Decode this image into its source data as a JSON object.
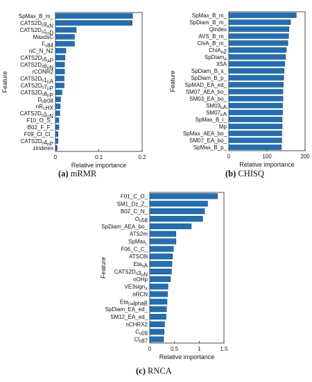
{
  "chart_data": [
    {
      "type": "bar",
      "orientation": "horizontal",
      "caption_letter": "(a)",
      "caption_text": "mRMR",
      "xlabel": "Relative importance",
      "ylabel": "Feature",
      "xlim": [
        0,
        0.2
      ],
      "xticks": [
        "0",
        "0.1",
        "0.2"
      ],
      "xtick_values": [
        0,
        0.1,
        0.2
      ],
      "grid": false,
      "bar_color": "#1f6fb8",
      "categories": [
        "SpMax_B_m_",
        "CATS2D09AN",
        "CATS2D01DD",
        "MaxdsC",
        "F084",
        "nC_N_N2",
        "CATS2D05AP",
        "CATS2D06PN",
        "rCONR2",
        "CATS2D01DA",
        "CATS2D07PP",
        "CATS2D08PP",
        "D0tr08",
        "nRCHX",
        "CATS2D03DN",
        "F10_O_S_",
        "B02_F_F_",
        "F09_Cl_Cl_",
        "CATS2D04PP",
        "ziridines"
      ],
      "category_labels": [
        [
          [
            "SpMax_B_m_",
            ""
          ]
        ],
        [
          [
            "CATS2D",
            ""
          ],
          [
            "0",
            "sub"
          ],
          [
            "9",
            ""
          ],
          [
            "A",
            "sub"
          ],
          [
            "N",
            ""
          ]
        ],
        [
          [
            "CATS2D",
            ""
          ],
          [
            "0",
            "sub"
          ],
          [
            "1",
            ""
          ],
          [
            "D",
            "sub"
          ],
          [
            "D",
            ""
          ]
        ],
        [
          [
            "MaxdsC",
            ""
          ]
        ],
        [
          [
            "F",
            ""
          ],
          [
            "0",
            "sub"
          ],
          [
            "84",
            ""
          ]
        ],
        [
          [
            "nC_N_N2",
            ""
          ]
        ],
        [
          [
            "CATS2D",
            ""
          ],
          [
            "0",
            "sub"
          ],
          [
            "5",
            ""
          ],
          [
            "A",
            "sub"
          ],
          [
            "P",
            ""
          ]
        ],
        [
          [
            "CATS2D",
            ""
          ],
          [
            "0",
            "sub"
          ],
          [
            "6",
            ""
          ],
          [
            "P",
            "sub"
          ],
          [
            "N",
            ""
          ]
        ],
        [
          [
            "rCONR2",
            ""
          ]
        ],
        [
          [
            "CATS2D",
            ""
          ],
          [
            "0",
            "sub"
          ],
          [
            "1",
            ""
          ],
          [
            "D",
            "sub"
          ],
          [
            "A",
            ""
          ]
        ],
        [
          [
            "CATS2D",
            ""
          ],
          [
            "0",
            "sub"
          ],
          [
            "7",
            ""
          ],
          [
            "P",
            "sub"
          ],
          [
            "P",
            ""
          ]
        ],
        [
          [
            "CATS2D",
            ""
          ],
          [
            "0",
            "sub"
          ],
          [
            "8",
            ""
          ],
          [
            "P",
            "sub"
          ],
          [
            "P",
            ""
          ]
        ],
        [
          [
            "D",
            ""
          ],
          [
            "0",
            "sub"
          ],
          [
            "tr08",
            ""
          ]
        ],
        [
          [
            "nR",
            ""
          ],
          [
            "C",
            "sub"
          ],
          [
            "HX",
            ""
          ]
        ],
        [
          [
            "CATS2D",
            ""
          ],
          [
            "0",
            "sub"
          ],
          [
            "3",
            ""
          ],
          [
            "D",
            "sub"
          ],
          [
            "N",
            ""
          ]
        ],
        [
          [
            "F10_O_S_",
            ""
          ]
        ],
        [
          [
            "B02_F_F_",
            ""
          ]
        ],
        [
          [
            "F09_Cl_Cl_",
            ""
          ]
        ],
        [
          [
            "CATS2D",
            ""
          ],
          [
            "0",
            "sub"
          ],
          [
            "4",
            ""
          ],
          [
            "P",
            "sub"
          ],
          [
            "P",
            ""
          ]
        ],
        [
          [
            "ziridines",
            ""
          ]
        ]
      ],
      "values": [
        0.178,
        0.177,
        0.048,
        0.044,
        0.044,
        0.024,
        0.022,
        0.021,
        0.021,
        0.02,
        0.02,
        0.015,
        0.012,
        0.011,
        0.01,
        0.008,
        0.008,
        0.006,
        0.006,
        0.004
      ]
    },
    {
      "type": "bar",
      "orientation": "horizontal",
      "caption_letter": "(b)",
      "caption_text": "CHISQ",
      "xlabel": "Relative importance",
      "ylabel": "Feature",
      "xlim": [
        0,
        200
      ],
      "xticks": [
        "0",
        "100",
        "200"
      ],
      "xtick_values": [
        0,
        100,
        200
      ],
      "grid": false,
      "bar_color": "#1f6fb8",
      "categories": [
        "SpMax_B_m_",
        "SpDiam_B_m_",
        "Qindex",
        "AVS_B_m_",
        "ChiA_B_m_",
        "ChiAH2",
        "SpDiamA",
        "X5A",
        "SpDiam_B_s_",
        "SpDiam_B_p_",
        "SpMAD_EA_ed_",
        "SM07_AEA_bo_",
        "SM03_EA_bo_",
        "SM03EA",
        "SM07EA",
        "SpMax_B_i_",
        "Mp",
        "SpMax_AEA_bo_",
        "SM07_EA_bo_",
        "SpMax_B_p_"
      ],
      "category_labels": [
        [
          [
            "SpMax_B_m_",
            ""
          ]
        ],
        [
          [
            "SpDiam_B_m_",
            ""
          ]
        ],
        [
          [
            "Qindex",
            ""
          ]
        ],
        [
          [
            "AVS_B_m_",
            ""
          ]
        ],
        [
          [
            "ChiA_B_m_",
            ""
          ]
        ],
        [
          [
            "ChiA",
            ""
          ],
          [
            "H",
            "sub"
          ],
          [
            "2",
            ""
          ]
        ],
        [
          [
            "SpDiam",
            ""
          ],
          [
            "A",
            "sub"
          ]
        ],
        [
          [
            "X5A",
            ""
          ]
        ],
        [
          [
            "SpDiam_B_s_",
            ""
          ]
        ],
        [
          [
            "SpDiam_B_p_",
            ""
          ]
        ],
        [
          [
            "SpMAD_EA_ed_",
            ""
          ]
        ],
        [
          [
            "SM07_AEA_bo_",
            ""
          ]
        ],
        [
          [
            "SM03_EA_bo_",
            ""
          ]
        ],
        [
          [
            "SM03",
            ""
          ],
          [
            "E",
            "sub"
          ],
          [
            "A",
            ""
          ]
        ],
        [
          [
            "SM07",
            ""
          ],
          [
            "E",
            "sub"
          ],
          [
            "A",
            ""
          ]
        ],
        [
          [
            "SpMax_B_i_",
            ""
          ]
        ],
        [
          [
            "Mp",
            ""
          ]
        ],
        [
          [
            "SpMax_AEA_bo_",
            ""
          ]
        ],
        [
          [
            "SM07_EA_bo_",
            ""
          ]
        ],
        [
          [
            "SpMax_B_p_",
            ""
          ]
        ]
      ],
      "values": [
        177,
        162,
        158,
        157,
        155,
        151,
        149,
        147,
        145,
        144,
        143,
        142,
        142,
        141,
        141,
        140,
        140,
        139,
        139,
        138
      ]
    },
    {
      "type": "bar",
      "orientation": "horizontal",
      "caption_letter": "(c)",
      "caption_text": "RNCA",
      "xlabel": "Relative importance",
      "ylabel": "Feature",
      "xlim": [
        0,
        1.5
      ],
      "xticks": [
        "0",
        "0.5",
        "1",
        "1.5"
      ],
      "xtick_values": [
        0,
        0.5,
        1,
        1.5
      ],
      "grid": false,
      "bar_color": "#1f6fb8",
      "categories": [
        "F01_C_O_",
        "SM1_Dz_Z_",
        "B02_C_N_",
        "O058",
        "SpDiam_AEA_bo_",
        "ATS2m",
        "SpMaxL",
        "F06_C_C_",
        "ATSC8i",
        "EtahA",
        "CATS2D03DN",
        "nOHp",
        "VE3signX",
        "nRCN",
        "EtaDAlphaB",
        "SpDiam_EA_ed_",
        "SM12_EA_ed_",
        "nCHRX2",
        "C009",
        "Cl087"
      ],
      "category_labels": [
        [
          [
            "F01_C_O_",
            ""
          ]
        ],
        [
          [
            "SM1_Dz_Z_",
            ""
          ]
        ],
        [
          [
            "B02_C_N_",
            ""
          ]
        ],
        [
          [
            "O",
            ""
          ],
          [
            "0",
            "sub"
          ],
          [
            "58",
            ""
          ]
        ],
        [
          [
            "SpDiam_AEA_bo_",
            ""
          ]
        ],
        [
          [
            "ATS2m",
            ""
          ]
        ],
        [
          [
            "SpMax",
            ""
          ],
          [
            "L",
            "sub"
          ]
        ],
        [
          [
            "F06_C_C_",
            ""
          ]
        ],
        [
          [
            "ATSC8i",
            ""
          ]
        ],
        [
          [
            "Eta",
            ""
          ],
          [
            "h",
            "sub"
          ],
          [
            "A",
            ""
          ]
        ],
        [
          [
            "CATS2D",
            ""
          ],
          [
            "0",
            "sub"
          ],
          [
            "3",
            ""
          ],
          [
            "D",
            "sub"
          ],
          [
            "N",
            ""
          ]
        ],
        [
          [
            "nOHp",
            ""
          ]
        ],
        [
          [
            "VE3sign",
            ""
          ],
          [
            "X",
            "sub"
          ]
        ],
        [
          [
            "nRCN",
            ""
          ]
        ],
        [
          [
            "Eta",
            ""
          ],
          [
            "DA",
            "sub"
          ],
          [
            "lphaB",
            ""
          ]
        ],
        [
          [
            "SpDiam_EA_ed_",
            ""
          ]
        ],
        [
          [
            "SM12_EA_ed_",
            ""
          ]
        ],
        [
          [
            "nCHRX2",
            ""
          ]
        ],
        [
          [
            "C",
            ""
          ],
          [
            "0",
            "sub"
          ],
          [
            "09",
            ""
          ]
        ],
        [
          [
            "Cl",
            ""
          ],
          [
            "0",
            "sub"
          ],
          [
            "87",
            ""
          ]
        ]
      ],
      "values": [
        1.37,
        1.17,
        1.11,
        1.07,
        0.84,
        0.53,
        0.53,
        0.48,
        0.46,
        0.45,
        0.44,
        0.42,
        0.37,
        0.36,
        0.35,
        0.34,
        0.33,
        0.3,
        0.29,
        0.28
      ]
    }
  ]
}
